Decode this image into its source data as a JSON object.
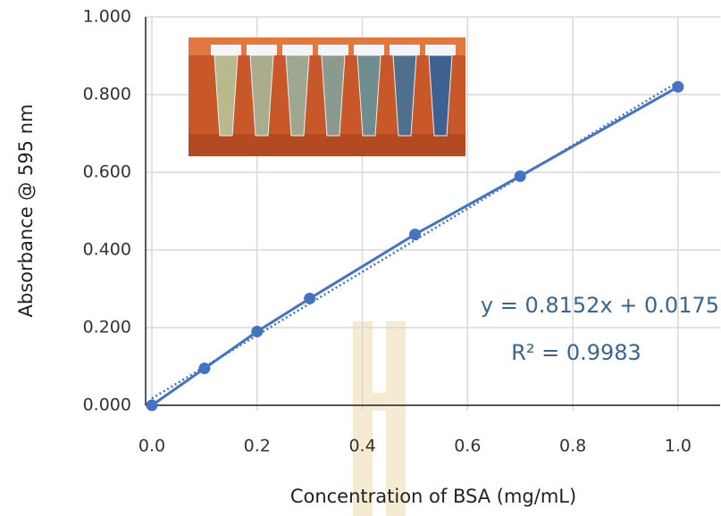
{
  "chart_data": {
    "type": "line",
    "x_label": "Concentration of BSA (mg/mL)",
    "y_label": "Absorbance @ 595 nm",
    "x": [
      0,
      0.1,
      0.2,
      0.3,
      0.5,
      0.7,
      1.0
    ],
    "series": [
      {
        "color": "#4472c4",
        "values": [
          0,
          0.095,
          0.19,
          0.275,
          0.44,
          0.59,
          0.82
        ]
      }
    ],
    "trendline": {
      "slope": 0.8152,
      "intercept": 0.0175,
      "style": "dotted",
      "label": "y = 0.8152x + 0.0175",
      "r2_label": "R² = 0.9983"
    },
    "xlim": [
      0,
      1.08
    ],
    "xticks": [
      {
        "value": 0,
        "label": "0.0"
      },
      0.2,
      0.4,
      0.6,
      0.8,
      {
        "value": 1.0,
        "label": "1.0"
      }
    ],
    "ylim": [
      0,
      1
    ],
    "yticks": [
      {
        "value": 0,
        "label": "0.000"
      },
      {
        "value": 0.2,
        "label": "0.200"
      },
      {
        "value": 0.4,
        "label": "0.400"
      },
      {
        "value": 0.6,
        "label": "0.600"
      },
      {
        "value": 0.8,
        "label": "0.800"
      },
      {
        "value": 1,
        "label": "1.000"
      }
    ],
    "grid": true
  }
}
